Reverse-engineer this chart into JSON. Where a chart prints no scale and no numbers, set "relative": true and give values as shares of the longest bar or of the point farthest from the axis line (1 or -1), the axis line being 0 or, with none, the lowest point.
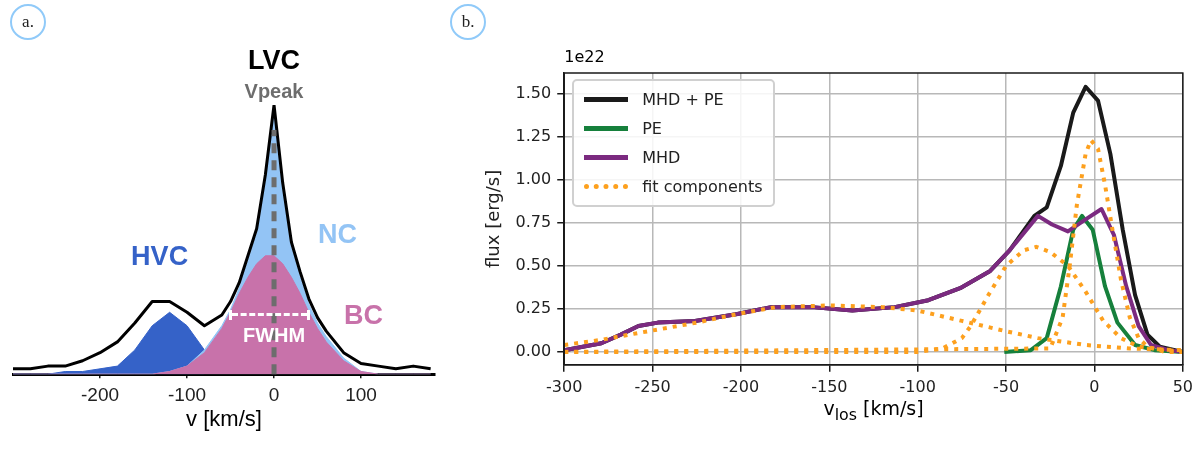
{
  "chart_data": [
    {
      "type": "area",
      "title": "LVC",
      "xlabel": "v [km/s]",
      "relative": true,
      "tick_labels": "x",
      "grid": false,
      "annotations": [
        "a.",
        {
          "text": "FWHM",
          "x": 0,
          "y": 0.22
        }
      ],
      "xlim": [
        -300,
        185
      ],
      "xticks": [
        -200,
        -100,
        0,
        100
      ],
      "x": [
        -300,
        -280,
        -260,
        -240,
        -220,
        -200,
        -180,
        -160,
        -140,
        -120,
        -100,
        -80,
        -60,
        -50,
        -40,
        -30,
        -20,
        -10,
        0,
        10,
        20,
        30,
        40,
        50,
        60,
        80,
        100,
        120,
        140,
        160,
        180
      ],
      "ref_lines": [
        {
          "axis": "x",
          "value": 0,
          "label": "Vpeak",
          "color": "#6d6d6d",
          "line_style": "dashed"
        }
      ],
      "series": [
        {
          "name": "HVC",
          "color": "#3562c8",
          "values": [
            0,
            0,
            0,
            0.01,
            0.01,
            0.02,
            0.03,
            0.09,
            0.18,
            0.23,
            0.18,
            0.09,
            null,
            null,
            null,
            null,
            null,
            null,
            null,
            null,
            null,
            null,
            null,
            null,
            null,
            null,
            null,
            null,
            null,
            null,
            null
          ]
        },
        {
          "name": "NC",
          "color": "#93c4f5",
          "values": [
            0,
            0,
            0,
            0,
            0,
            0,
            0,
            0,
            0,
            0.01,
            0.03,
            0.09,
            0.18,
            0.24,
            0.32,
            0.42,
            0.52,
            0.72,
            1.0,
            0.69,
            0.47,
            0.36,
            0.26,
            0.19,
            0.14,
            0.06,
            0.01,
            0,
            0,
            0,
            0
          ]
        },
        {
          "name": "BC",
          "color": "#c872aa",
          "values": [
            0,
            0,
            0,
            0,
            0,
            0,
            0,
            0,
            0,
            0.01,
            0.03,
            0.08,
            0.17,
            0.23,
            0.3,
            0.36,
            0.41,
            0.44,
            0.44,
            0.41,
            0.36,
            0.3,
            0.23,
            0.17,
            0.12,
            0.05,
            0.01,
            0,
            0,
            0,
            0
          ]
        },
        {
          "type": "line",
          "color": "#000000",
          "values": [
            0.02,
            0.02,
            0.03,
            0.03,
            0.05,
            0.08,
            0.12,
            0.19,
            0.27,
            0.27,
            0.23,
            0.18,
            0.22,
            0.27,
            0.34,
            0.44,
            0.54,
            0.74,
            1.0,
            0.71,
            0.49,
            0.38,
            0.28,
            0.21,
            0.16,
            0.08,
            0.04,
            0.03,
            0.02,
            0.03,
            0.02
          ]
        }
      ]
    },
    {
      "type": "line",
      "xlabel": "v$_{los}$ [km/s]",
      "ylabel": "flux [erg/s]",
      "annotations": [
        "b.",
        "1e22"
      ],
      "grid": true,
      "legend": "top left",
      "xlim": [
        -300,
        50
      ],
      "xticks": [
        -300,
        -250,
        -200,
        -150,
        -100,
        -50,
        0,
        50
      ],
      "ylim": [
        -0.075,
        1.62
      ],
      "yticks": [
        {
          "value": 0,
          "label": "0.00"
        },
        {
          "value": 0.25,
          "label": "0.25"
        },
        {
          "value": 0.5,
          "label": "0.50"
        },
        {
          "value": 0.75,
          "label": "0.75"
        },
        {
          "value": 1,
          "label": "1.00"
        },
        {
          "value": 1.25,
          "label": "1.25"
        },
        {
          "value": 1.5,
          "label": "1.50"
        }
      ],
      "series": [
        {
          "name": "MHD + PE",
          "color": "#1a1a1a",
          "x": [
            -300,
            -279,
            -268,
            -258,
            -247,
            -226,
            -202,
            -183,
            -160,
            -137,
            -113,
            -94,
            -76,
            -59,
            -48,
            -34,
            -27,
            -19,
            -12,
            -5,
            2,
            9,
            16,
            23,
            30,
            37,
            50
          ],
          "values": [
            0.01,
            0.05,
            0.1,
            0.15,
            0.17,
            0.18,
            0.22,
            0.26,
            0.26,
            0.24,
            0.26,
            0.3,
            0.37,
            0.47,
            0.59,
            0.79,
            0.84,
            1.08,
            1.39,
            1.54,
            1.46,
            1.15,
            0.71,
            0.33,
            0.1,
            0.03,
            0
          ]
        },
        {
          "name": "PE",
          "color": "#16803c",
          "x": [
            -51,
            -36,
            -27,
            -19,
            -12,
            -7,
            -1,
            6,
            13,
            23,
            34,
            50
          ],
          "values": [
            0,
            0.01,
            0.08,
            0.38,
            0.71,
            0.79,
            0.71,
            0.38,
            0.17,
            0.04,
            0.01,
            0
          ]
        },
        {
          "name": "MHD",
          "color": "#7b2a80",
          "x": [
            -300,
            -279,
            -268,
            -258,
            -247,
            -226,
            -202,
            -183,
            -160,
            -137,
            -113,
            -94,
            -76,
            -59,
            -48,
            -32,
            -24,
            -15,
            -5,
            4,
            11,
            18,
            25,
            32,
            42,
            50
          ],
          "values": [
            0.01,
            0.05,
            0.1,
            0.15,
            0.17,
            0.18,
            0.22,
            0.26,
            0.26,
            0.24,
            0.26,
            0.3,
            0.37,
            0.47,
            0.59,
            0.79,
            0.74,
            0.7,
            0.77,
            0.83,
            0.68,
            0.38,
            0.15,
            0.04,
            0.01,
            0
          ]
        },
        {
          "name": "fit components",
          "color": "#fda01e",
          "line_style": "dotted",
          "x": [
            -300,
            -279,
            -258,
            -225,
            -202,
            -180,
            -150,
            -120,
            -100,
            -75,
            -50,
            -32,
            -5,
            20,
            50
          ],
          "values": [
            0.04,
            0.07,
            0.11,
            0.17,
            0.22,
            0.26,
            0.27,
            0.26,
            0.24,
            0.18,
            0.12,
            0.08,
            0.04,
            0.02,
            0.01
          ]
        },
        {
          "color": "#fda01e",
          "line_style": "dotted",
          "x": [
            -300,
            -100,
            -86,
            -75,
            -70,
            -60,
            -50,
            -40,
            -33,
            -25,
            -15,
            -5,
            5,
            15,
            25,
            50
          ],
          "values": [
            0,
            0,
            0.02,
            0.08,
            0.15,
            0.33,
            0.5,
            0.59,
            0.61,
            0.58,
            0.5,
            0.35,
            0.18,
            0.08,
            0.03,
            0
          ]
        },
        {
          "color": "#fda01e",
          "line_style": "dotted",
          "x": [
            -300,
            -25,
            -18,
            -14,
            -10,
            -5,
            -2,
            2,
            6,
            10,
            15,
            20,
            25,
            30,
            40,
            50
          ],
          "values": [
            0,
            0.02,
            0.2,
            0.5,
            0.85,
            1.15,
            1.23,
            1.18,
            0.97,
            0.72,
            0.42,
            0.2,
            0.08,
            0.03,
            0,
            0
          ]
        }
      ]
    }
  ]
}
